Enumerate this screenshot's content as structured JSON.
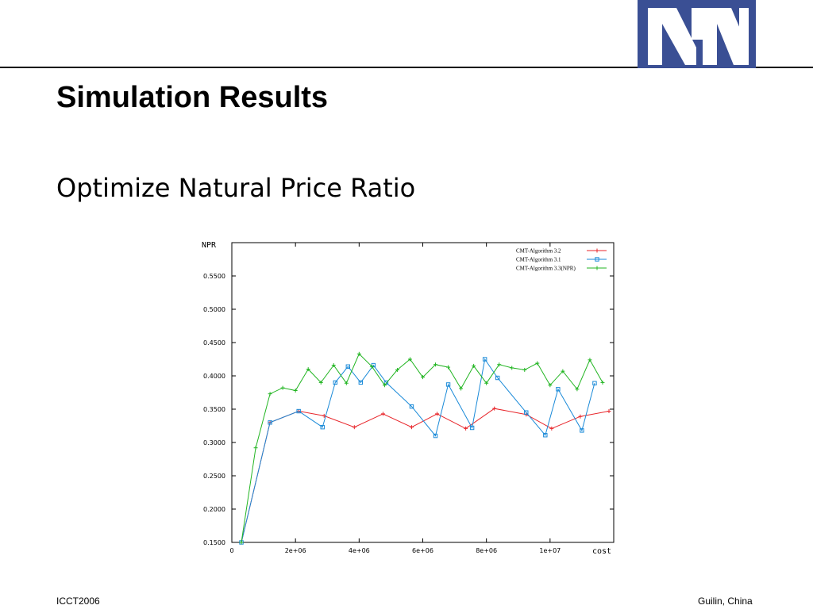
{
  "slide": {
    "title": "Simulation Results",
    "subtitle": "Optimize Natural Price Ratio",
    "footer_left": "ICCT2006",
    "footer_right": "Guilin, China"
  },
  "logo": {
    "icon": "ngn-logo",
    "text": "NGN",
    "color": "#3a4f94"
  },
  "chart_data": {
    "type": "line",
    "xlabel": "cost",
    "ylabel": "NPR",
    "xlim": [
      0,
      12000000
    ],
    "ylim": [
      0.15,
      0.6
    ],
    "x_ticks": [
      {
        "v": 0,
        "label": "0"
      },
      {
        "v": 2000000,
        "label": "2e+06"
      },
      {
        "v": 4000000,
        "label": "4e+06"
      },
      {
        "v": 6000000,
        "label": "6e+06"
      },
      {
        "v": 8000000,
        "label": "8e+06"
      },
      {
        "v": 10000000,
        "label": "1e+07"
      }
    ],
    "y_ticks": [
      {
        "v": 0.15,
        "label": "0.1500"
      },
      {
        "v": 0.2,
        "label": "0.2000"
      },
      {
        "v": 0.25,
        "label": "0.2500"
      },
      {
        "v": 0.3,
        "label": "0.3000"
      },
      {
        "v": 0.35,
        "label": "0.3500"
      },
      {
        "v": 0.4,
        "label": "0.4000"
      },
      {
        "v": 0.45,
        "label": "0.4500"
      },
      {
        "v": 0.5,
        "label": "0.5000"
      },
      {
        "v": 0.55,
        "label": "0.5500"
      }
    ],
    "grid": false,
    "legend_position": "top-right",
    "series": [
      {
        "name": "CMT-Algorithm 3.2",
        "color": "#e8262b",
        "marker": "plus",
        "points": [
          [
            300000,
            0.15
          ],
          [
            1200000,
            0.33
          ],
          [
            2100000,
            0.347
          ],
          [
            2900000,
            0.34
          ],
          [
            3850000,
            0.323
          ],
          [
            4750000,
            0.343
          ],
          [
            5650000,
            0.323
          ],
          [
            6450000,
            0.343
          ],
          [
            7350000,
            0.321
          ],
          [
            8250000,
            0.351
          ],
          [
            9250000,
            0.342
          ],
          [
            10050000,
            0.321
          ],
          [
            10950000,
            0.339
          ],
          [
            11850000,
            0.347
          ]
        ]
      },
      {
        "name": "CMT-Algorithm 3.1",
        "color": "#1a8ad8",
        "marker": "square",
        "points": [
          [
            300000,
            0.15
          ],
          [
            1200000,
            0.33
          ],
          [
            2100000,
            0.347
          ],
          [
            2850000,
            0.323
          ],
          [
            3250000,
            0.39
          ],
          [
            3650000,
            0.414
          ],
          [
            4050000,
            0.39
          ],
          [
            4450000,
            0.416
          ],
          [
            4850000,
            0.39
          ],
          [
            5650000,
            0.354
          ],
          [
            6400000,
            0.31
          ],
          [
            6800000,
            0.387
          ],
          [
            7550000,
            0.322
          ],
          [
            7950000,
            0.425
          ],
          [
            8350000,
            0.397
          ],
          [
            9250000,
            0.345
          ],
          [
            9850000,
            0.311
          ],
          [
            10250000,
            0.38
          ],
          [
            11000000,
            0.318
          ],
          [
            11400000,
            0.389
          ]
        ]
      },
      {
        "name": "CMT-Algorithm 3.3(NPR)",
        "color": "#22b522",
        "marker": "plus",
        "points": [
          [
            300000,
            0.15
          ],
          [
            750000,
            0.292
          ],
          [
            1200000,
            0.373
          ],
          [
            1600000,
            0.382
          ],
          [
            2000000,
            0.378
          ],
          [
            2400000,
            0.41
          ],
          [
            2800000,
            0.39
          ],
          [
            3200000,
            0.416
          ],
          [
            3600000,
            0.389
          ],
          [
            4000000,
            0.433
          ],
          [
            4400000,
            0.414
          ],
          [
            4800000,
            0.386
          ],
          [
            5200000,
            0.409
          ],
          [
            5600000,
            0.425
          ],
          [
            6000000,
            0.398
          ],
          [
            6400000,
            0.417
          ],
          [
            6800000,
            0.413
          ],
          [
            7200000,
            0.381
          ],
          [
            7600000,
            0.415
          ],
          [
            8000000,
            0.389
          ],
          [
            8400000,
            0.417
          ],
          [
            8800000,
            0.412
          ],
          [
            9200000,
            0.409
          ],
          [
            9600000,
            0.419
          ],
          [
            10000000,
            0.386
          ],
          [
            10400000,
            0.407
          ],
          [
            10850000,
            0.38
          ],
          [
            11250000,
            0.424
          ],
          [
            11650000,
            0.39
          ]
        ]
      }
    ]
  }
}
